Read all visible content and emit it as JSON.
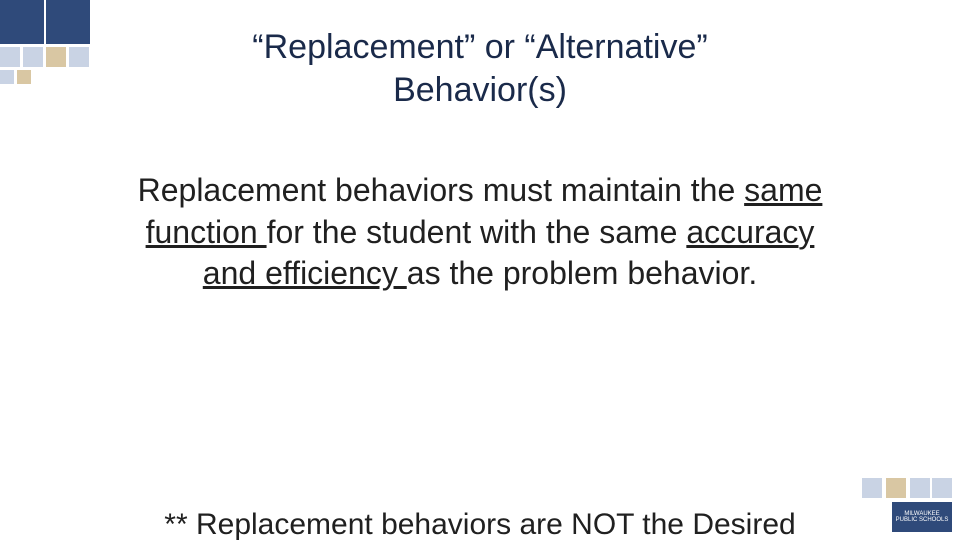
{
  "colors": {
    "accent_dark": "#2f4a7a",
    "accent_light": "#c9d3e4",
    "accent_tan": "#d9c7a3",
    "title_color": "#1a2a4a",
    "body_color": "#202020",
    "bg": "#ffffff"
  },
  "title": {
    "line1": "“Replacement” or “Alternative”",
    "line2": "Behavior(s)",
    "fontsize": 34
  },
  "body": {
    "seg1": "Replacement behaviors must maintain the ",
    "seg2_ul": "same function ",
    "seg3": "for the student with the same ",
    "seg4_ul": "accuracy and efficiency ",
    "seg5": "as the problem behavior.",
    "fontsize": 32
  },
  "footnote": {
    "text": "** Replacement behaviors are NOT the Desired"
  },
  "decor": {
    "top_big1_color": "#2f4a7a",
    "top_big2_color": "#2f4a7a",
    "top_s1_color": "#c9d3e4",
    "top_s2_color": "#c9d3e4",
    "top_s3_color": "#d9c7a3",
    "top_s4_color": "#c9d3e4",
    "top_s5_color": "#d9c7a3",
    "top_s6_color": "#c9d3e4",
    "br1_color": "#c9d3e4",
    "br2_color": "#d9c7a3",
    "br3_color": "#c9d3e4",
    "br4_color": "#c9d3e4",
    "logo_bg": "#2f4a7a",
    "logo_text": "MILWAUKEE PUBLIC SCHOOLS"
  }
}
